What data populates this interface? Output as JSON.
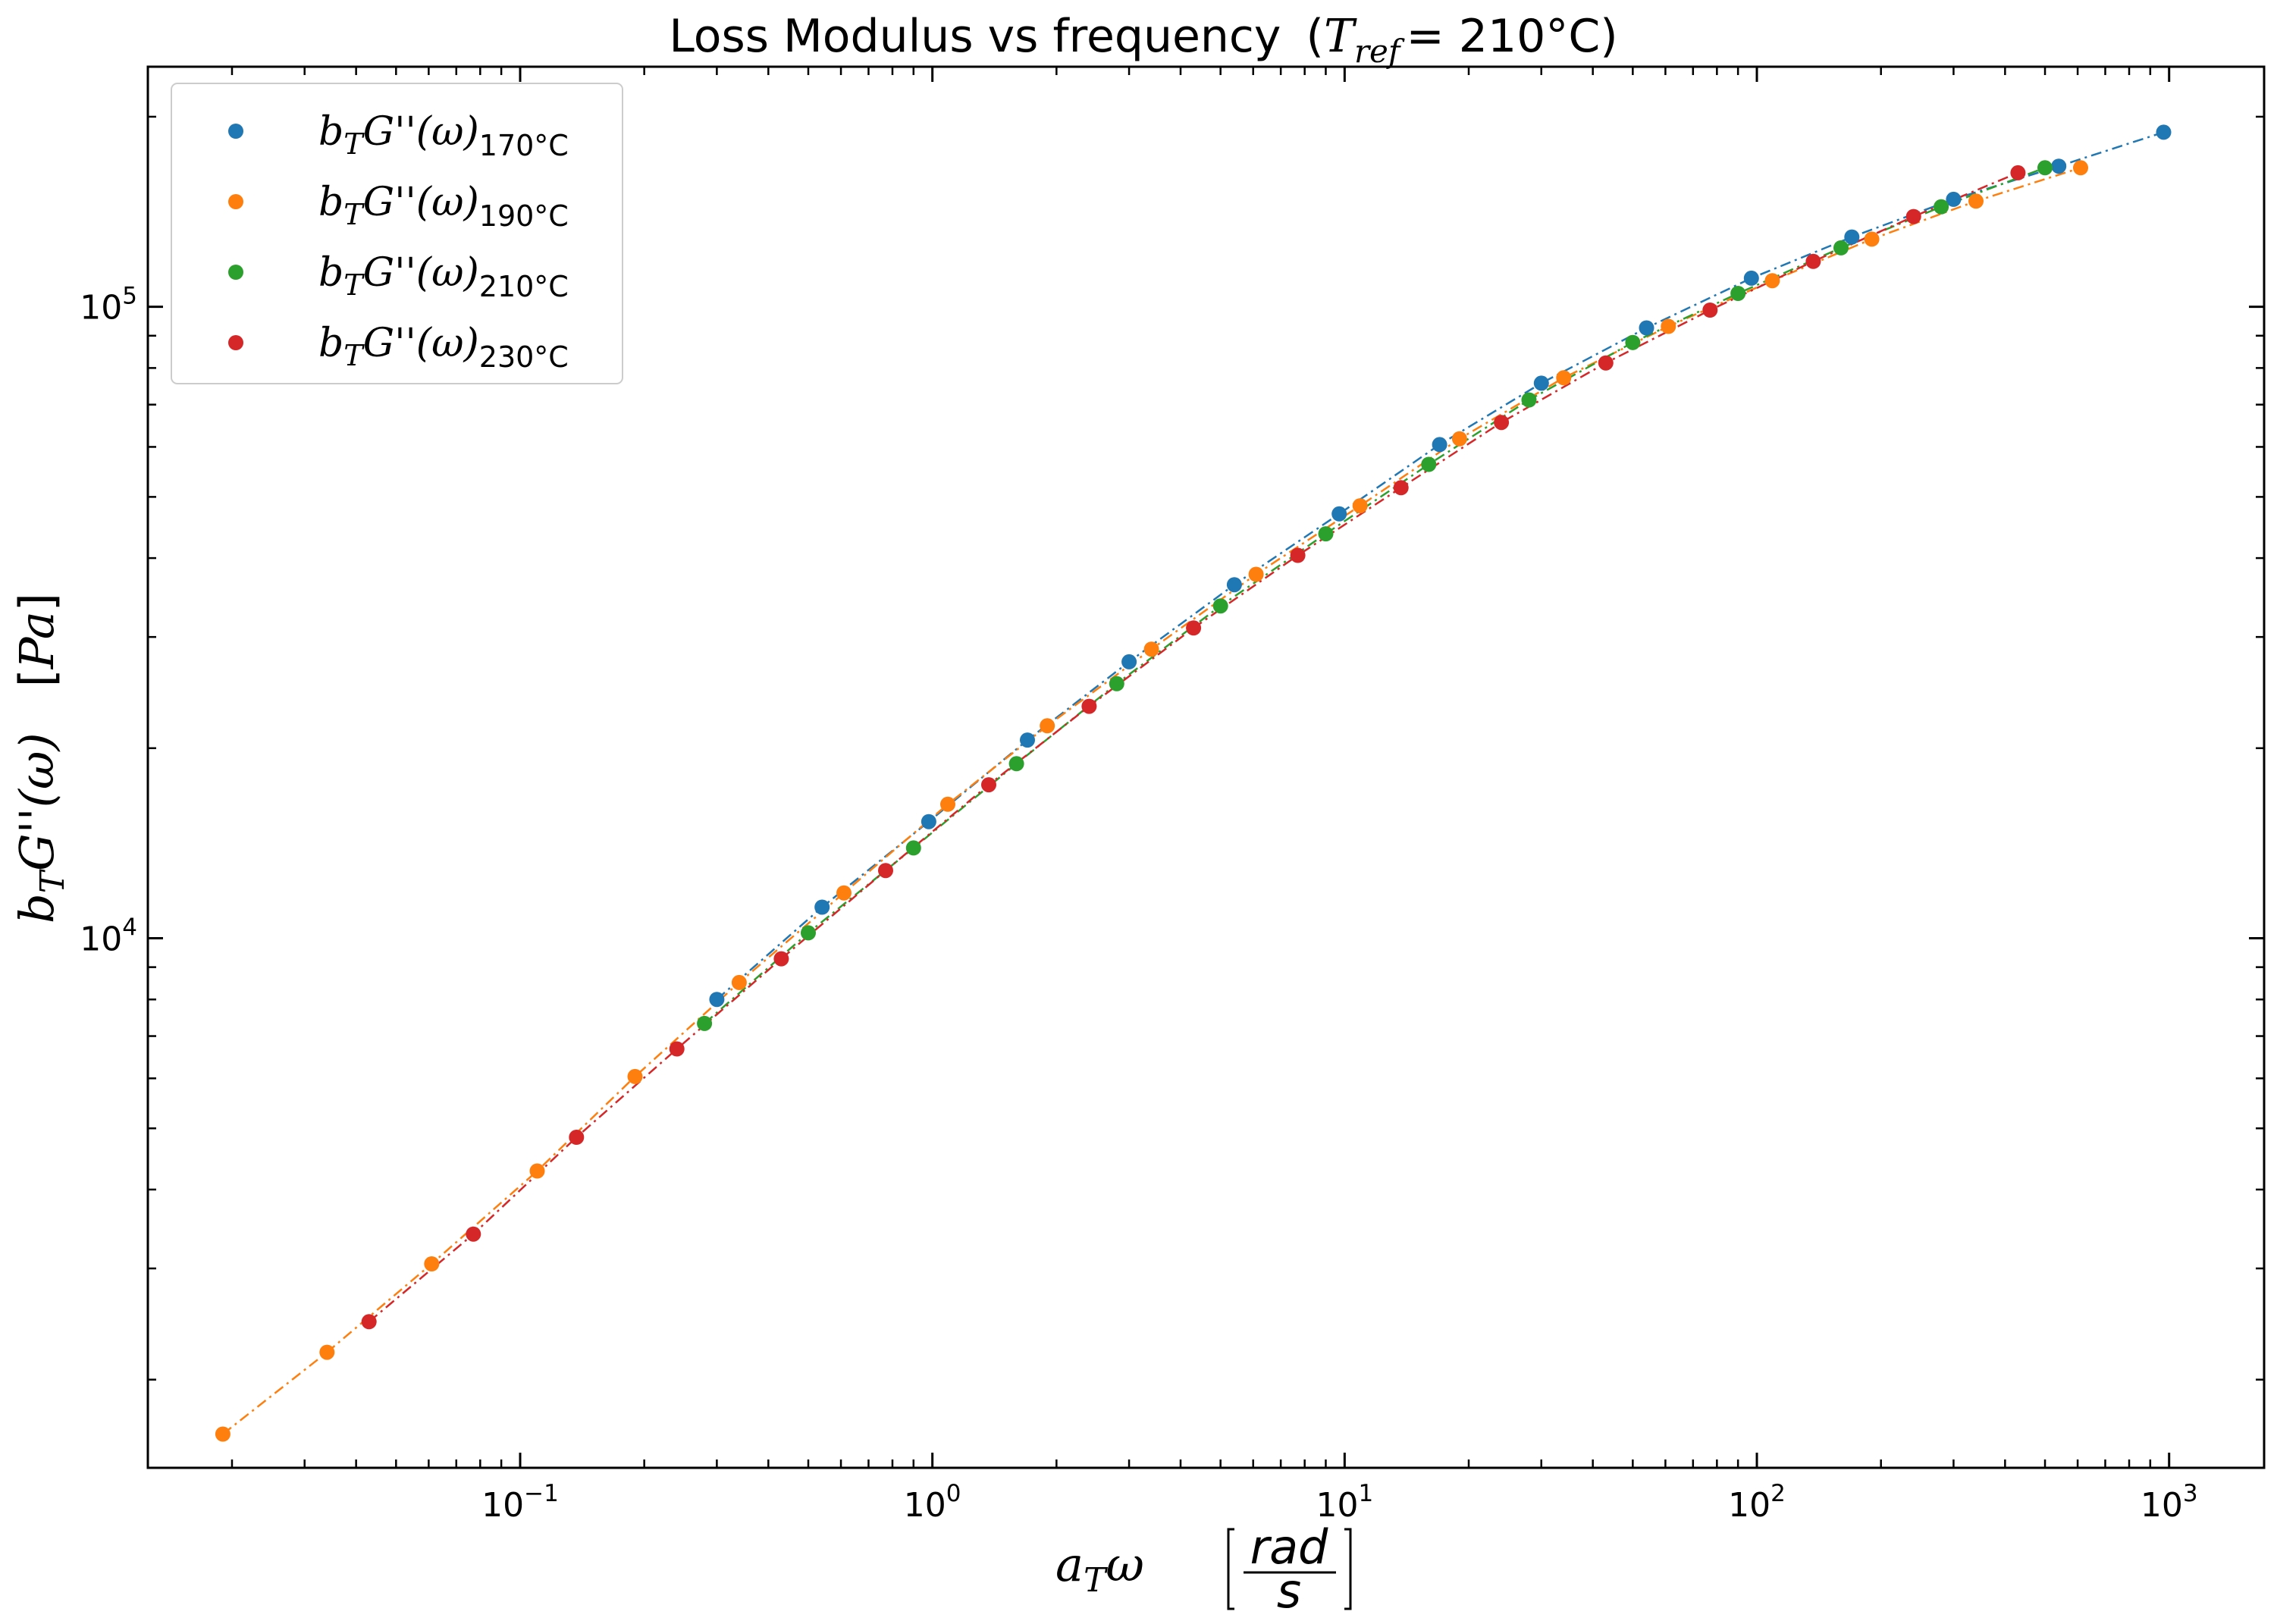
{
  "chart_data": {
    "type": "scatter",
    "title": "Loss Modulus vs frequency",
    "title_math": {
      "symbol": "T",
      "subscript": "ref",
      "value": "= 210°C"
    },
    "xlabel": "a_T ω [rad/s]",
    "ylabel": "b_T G''(ω) [Pa]",
    "xscale": "log",
    "yscale": "log",
    "xlim": [
      0.0125,
      1700
    ],
    "ylim": [
      1450,
      240000
    ],
    "x_ticks": [
      {
        "base": "10",
        "exp": "−1",
        "value": 0.1
      },
      {
        "base": "10",
        "exp": "0",
        "value": 1
      },
      {
        "base": "10",
        "exp": "1",
        "value": 10
      },
      {
        "base": "10",
        "exp": "2",
        "value": 100
      },
      {
        "base": "10",
        "exp": "3",
        "value": 1000
      }
    ],
    "y_ticks": [
      {
        "base": "10",
        "exp": "4",
        "value": 10000
      },
      {
        "base": "10",
        "exp": "5",
        "value": 100000
      }
    ],
    "grid": false,
    "legend_position": "top-left",
    "series": [
      {
        "name": "b_T G''(ω)_170°C",
        "legend": {
          "prefix": "b",
          "sub1": "T",
          "mid": "G''(ω)",
          "sub2": "170°C"
        },
        "color": "#1f77b4",
        "x": [
          0.3,
          0.54,
          0.98,
          1.7,
          3.0,
          5.4,
          9.7,
          17,
          30,
          54,
          97,
          170,
          300,
          540,
          970
        ],
        "y": [
          8000,
          11200,
          15300,
          20600,
          27400,
          36300,
          47000,
          60500,
          75700,
          92600,
          111000,
          129000,
          148000,
          167000,
          189000
        ]
      },
      {
        "name": "b_T G''(ω)_190°C",
        "legend": {
          "prefix": "b",
          "sub1": "T",
          "mid": "G''(ω)",
          "sub2": "190°C"
        },
        "color": "#ff7f0e",
        "x": [
          0.019,
          0.034,
          0.061,
          0.11,
          0.19,
          0.34,
          0.61,
          1.09,
          1.9,
          3.4,
          6.1,
          10.9,
          19,
          34,
          61,
          109,
          190,
          340,
          610
        ],
        "y": [
          1640,
          2210,
          3050,
          4280,
          6040,
          8510,
          11800,
          16300,
          21700,
          28700,
          37700,
          48400,
          61800,
          77200,
          93100,
          110000,
          128000,
          147000,
          166000
        ]
      },
      {
        "name": "b_T G''(ω)_210°C",
        "legend": {
          "prefix": "b",
          "sub1": "T",
          "mid": "G''(ω)",
          "sub2": "210°C"
        },
        "color": "#2ca02c",
        "x": [
          0.28,
          0.5,
          0.9,
          1.6,
          2.8,
          5.0,
          9.0,
          16,
          28,
          50,
          90,
          160,
          280,
          500
        ],
        "y": [
          7330,
          10200,
          13900,
          18900,
          25300,
          33600,
          43700,
          56300,
          71200,
          87800,
          105000,
          124000,
          144000,
          166000
        ]
      },
      {
        "name": "b_T G''(ω)_230°C",
        "legend": {
          "prefix": "b",
          "sub1": "T",
          "mid": "G''(ω)",
          "sub2": "230°C"
        },
        "color": "#d62728",
        "x": [
          0.043,
          0.077,
          0.137,
          0.24,
          0.43,
          0.77,
          1.37,
          2.4,
          4.3,
          7.7,
          13.7,
          24,
          43,
          77,
          137,
          240,
          430
        ],
        "y": [
          2470,
          3400,
          4840,
          6680,
          9280,
          12800,
          17500,
          23300,
          31000,
          40400,
          51700,
          65600,
          81500,
          98800,
          118000,
          139000,
          163000
        ]
      }
    ]
  }
}
